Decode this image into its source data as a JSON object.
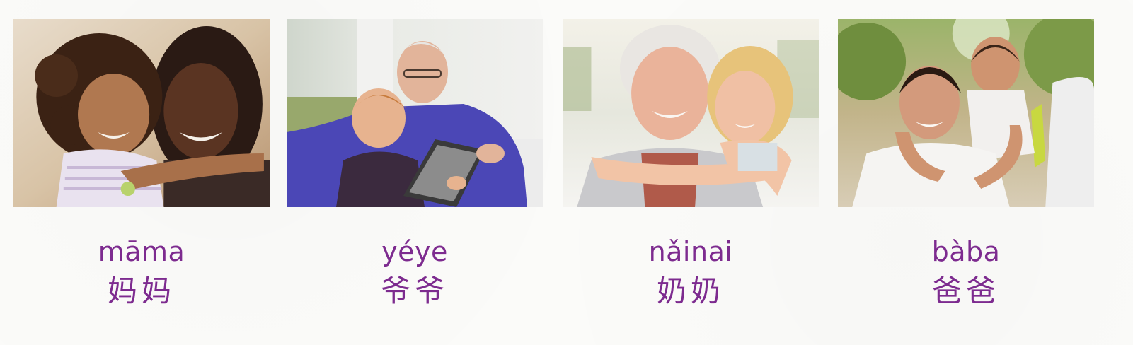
{
  "cards": [
    {
      "pinyin": "māma",
      "hanzi": "妈妈",
      "photo_subject": "smiling mother hugging young daughter"
    },
    {
      "pinyin": "yéye",
      "hanzi": "爷爷",
      "photo_subject": "grandfather reading a tablet with grandson"
    },
    {
      "pinyin": "nǎinai",
      "hanzi": "奶奶",
      "photo_subject": "grandmother embraced by granddaughter"
    },
    {
      "pinyin": "bàba",
      "hanzi": "爸爸",
      "photo_subject": "father giving son a piggyback ride outdoors"
    }
  ],
  "colors": {
    "label_purple": "#7d2b8f",
    "page_background": "#fbfbf9"
  }
}
